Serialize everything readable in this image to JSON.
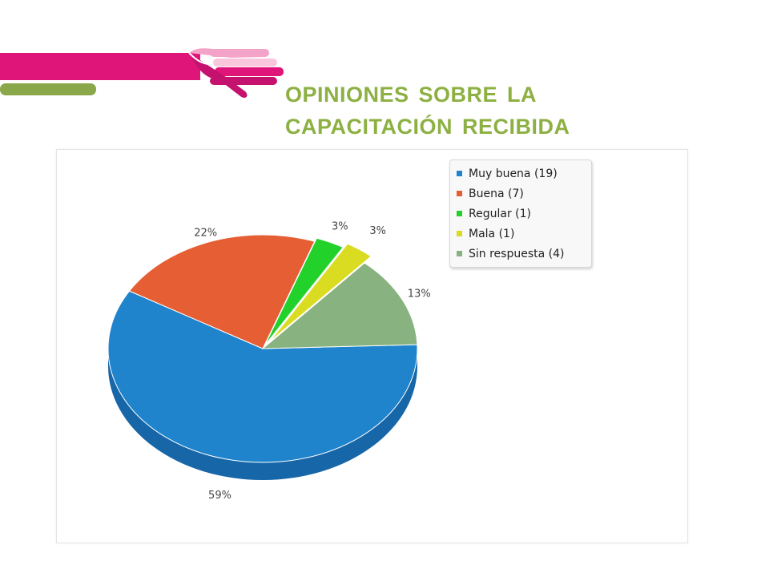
{
  "slide": {
    "title_line1": "OPINIONES SOBRE LA",
    "title_line2": "CAPACITACIÓN RECIBIDA"
  },
  "colors": {
    "title": "#8db043",
    "header_bar_magenta": "#e0157a",
    "header_bar_green": "#8aa84a",
    "hand_pink_light": "#f4a3c8",
    "hand_magenta": "#c5126e"
  },
  "chart_data": {
    "type": "pie",
    "style": "3d",
    "title": "",
    "legend_position": "top-right",
    "slices": [
      {
        "label": "Muy buena (19)",
        "value": 59,
        "pct_label": "59%",
        "color": "#1f84cc",
        "dark": "#1666a8"
      },
      {
        "label": "Buena (7)",
        "value": 22,
        "pct_label": "22%",
        "color": "#e65f34",
        "dark": "#b8481f"
      },
      {
        "label": "Regular (1)",
        "value": 3,
        "pct_label": "3%",
        "color": "#22d12a",
        "dark": "#18a01f"
      },
      {
        "label": "Mala (1)",
        "value": 3,
        "pct_label": "3%",
        "color": "#d9dc20",
        "dark": "#a9ab12"
      },
      {
        "label": "Sin respuesta (4)",
        "value": 13,
        "pct_label": "13%",
        "color": "#88b380",
        "dark": "#6a9262"
      }
    ]
  }
}
